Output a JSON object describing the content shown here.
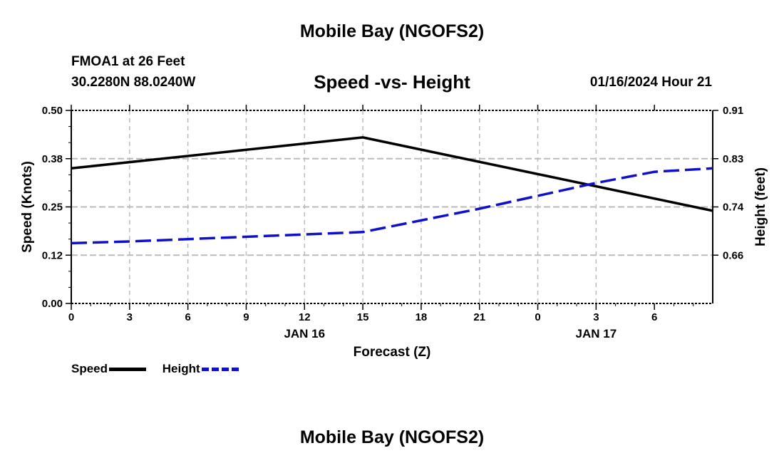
{
  "header": {
    "title": "Mobile Bay (NGOFS2)",
    "station": "FMOA1 at 26 Feet",
    "coords": "30.2280N  88.0240W",
    "subtitle": "Speed -vs- Height",
    "datetime": "01/16/2024 Hour 21"
  },
  "footer": {
    "title": "Mobile Bay (NGOFS2)"
  },
  "legend": {
    "speed_label": "Speed",
    "height_label": "Height"
  },
  "colors": {
    "speed": "#000000",
    "height": "#1010cc",
    "grid": "#bbbbbb"
  },
  "chart_data": {
    "type": "line",
    "x": [
      "0",
      "3",
      "6",
      "9",
      "12",
      "15",
      "18",
      "21",
      "0",
      "3",
      "6"
    ],
    "xlabel": "Forecast (Z)",
    "date_labels": [
      {
        "at_index": 4,
        "label": "JAN 16"
      },
      {
        "at_index": 9,
        "label": "JAN 17"
      }
    ],
    "ylabel_left": "Speed (Knots)",
    "ylabel_right": "Height (feet)",
    "ylim_left": [
      0,
      0.5
    ],
    "ylim_right": [
      0.58,
      0.91
    ],
    "left_ticks": [
      "0.00",
      "0.12",
      "0.25",
      "0.38",
      "0.50"
    ],
    "right_ticks": [
      "0.66",
      "0.74",
      "0.83",
      "0.91"
    ],
    "grid": true,
    "series": [
      {
        "name": "Speed",
        "axis": "left",
        "style": "solid",
        "points": [
          [
            0,
            0.35
          ],
          [
            15,
            0.43
          ],
          [
            33,
            0.24
          ]
        ]
      },
      {
        "name": "Height",
        "axis": "right",
        "style": "dashed",
        "points": [
          [
            0,
            0.683
          ],
          [
            3,
            0.686
          ],
          [
            6,
            0.69
          ],
          [
            9,
            0.694
          ],
          [
            12,
            0.698
          ],
          [
            15,
            0.702
          ],
          [
            18,
            0.722
          ],
          [
            21,
            0.742
          ],
          [
            24,
            0.764
          ],
          [
            27,
            0.786
          ],
          [
            30,
            0.805
          ],
          [
            33,
            0.811
          ]
        ]
      }
    ]
  }
}
